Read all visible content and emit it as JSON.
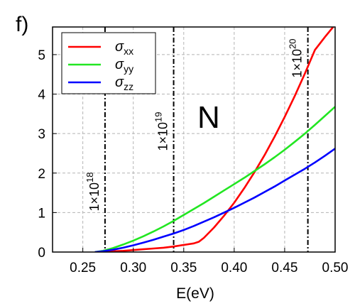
{
  "panel_label": "f)",
  "chart_data": {
    "type": "line",
    "xlabel": "E(eV)",
    "ylabel": "",
    "xlim": [
      0.22,
      0.5
    ],
    "ylim": [
      0,
      5.7
    ],
    "x_ticks": [
      0.25,
      0.3,
      0.35,
      0.4,
      0.45,
      0.5
    ],
    "x_tick_labels": [
      "0.25",
      "0.30",
      "0.35",
      "0.40",
      "0.45",
      "0.50"
    ],
    "y_ticks": [
      0,
      1,
      2,
      3,
      4,
      5
    ],
    "y_tick_labels": [
      "0",
      "1",
      "2",
      "3",
      "4",
      "5"
    ],
    "grid": true,
    "legend_position": "top-left",
    "region_label": "N",
    "colors": {
      "sigma_xx": "#ff0000",
      "sigma_yy": "#22e622",
      "sigma_zz": "#0000ff",
      "grid": "#b4b4b4",
      "vline": "#000000"
    },
    "series": [
      {
        "key": "sigma_xx",
        "name_base": "σ",
        "name_sub": "xx",
        "color": "#ff0000",
        "x": [
          0.262,
          0.27,
          0.28,
          0.29,
          0.3,
          0.31,
          0.32,
          0.33,
          0.34,
          0.35,
          0.36,
          0.365,
          0.37,
          0.38,
          0.39,
          0.4,
          0.41,
          0.42,
          0.43,
          0.44,
          0.45,
          0.46,
          0.47,
          0.48,
          0.49,
          0.498
        ],
        "y": [
          0.0,
          0.01,
          0.02,
          0.03,
          0.05,
          0.07,
          0.09,
          0.11,
          0.14,
          0.18,
          0.22,
          0.26,
          0.36,
          0.62,
          0.92,
          1.25,
          1.62,
          2.02,
          2.45,
          2.92,
          3.42,
          3.95,
          4.52,
          5.12,
          5.45,
          5.7
        ]
      },
      {
        "key": "sigma_yy",
        "name_base": "σ",
        "name_sub": "yy",
        "color": "#22e622",
        "x": [
          0.262,
          0.27,
          0.28,
          0.29,
          0.3,
          0.31,
          0.32,
          0.33,
          0.34,
          0.35,
          0.36,
          0.37,
          0.38,
          0.39,
          0.4,
          0.41,
          0.42,
          0.43,
          0.44,
          0.45,
          0.46,
          0.47,
          0.48,
          0.49,
          0.5
        ],
        "y": [
          0.0,
          0.03,
          0.1,
          0.19,
          0.29,
          0.4,
          0.52,
          0.65,
          0.79,
          0.94,
          1.09,
          1.24,
          1.4,
          1.56,
          1.72,
          1.88,
          2.05,
          2.22,
          2.4,
          2.59,
          2.79,
          3.0,
          3.22,
          3.45,
          3.68
        ]
      },
      {
        "key": "sigma_zz",
        "name_base": "σ",
        "name_sub": "zz",
        "color": "#0000ff",
        "x": [
          0.262,
          0.27,
          0.28,
          0.29,
          0.3,
          0.31,
          0.32,
          0.33,
          0.34,
          0.35,
          0.36,
          0.37,
          0.38,
          0.39,
          0.4,
          0.41,
          0.42,
          0.43,
          0.44,
          0.45,
          0.46,
          0.47,
          0.48,
          0.49,
          0.5
        ],
        "y": [
          0.0,
          0.02,
          0.06,
          0.11,
          0.17,
          0.24,
          0.31,
          0.39,
          0.47,
          0.56,
          0.66,
          0.77,
          0.88,
          1.0,
          1.12,
          1.25,
          1.38,
          1.52,
          1.66,
          1.81,
          1.96,
          2.11,
          2.27,
          2.44,
          2.62
        ]
      }
    ],
    "vertical_lines": [
      {
        "x": 0.272,
        "label_base": "1×10",
        "label_exp": "18"
      },
      {
        "x": 0.34,
        "label_base": "1×10",
        "label_exp": "19"
      },
      {
        "x": 0.473,
        "label_base": "1×10",
        "label_exp": "20"
      }
    ]
  }
}
